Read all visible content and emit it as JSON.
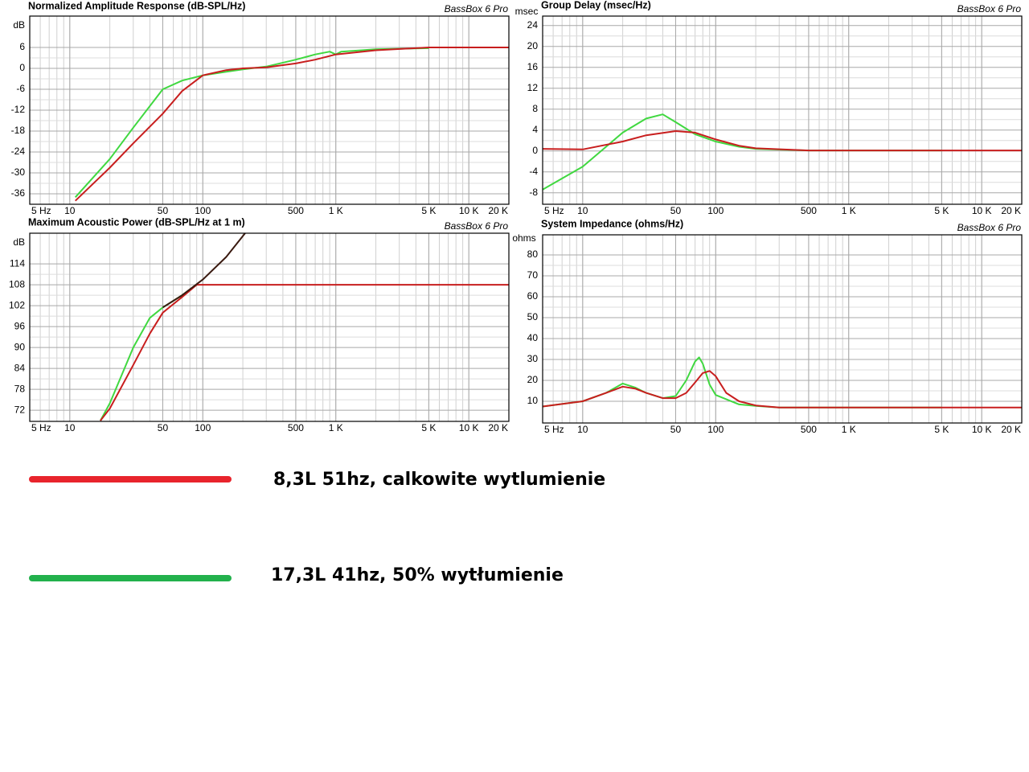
{
  "chart_data": [
    {
      "type": "line",
      "title": "Normalized Amplitude Response (dB-SPL/Hz)",
      "credit": "BassBox 6 Pro",
      "y_unit": "dB",
      "log_x": true,
      "grid": true,
      "minor_grid": true,
      "xlim": [
        5,
        20000
      ],
      "ylim": [
        -39,
        15
      ],
      "xticks": [
        {
          "value": 5,
          "label": "5 Hz"
        },
        10,
        50,
        100,
        500,
        {
          "value": 1000,
          "label": "1 K"
        },
        {
          "value": 5000,
          "label": "5 K"
        },
        {
          "value": 10000,
          "label": "10 K"
        },
        {
          "value": 20000,
          "label": "20 K"
        }
      ],
      "yticks": [
        -36,
        -30,
        -24,
        -18,
        -12,
        -6,
        0,
        6
      ],
      "series": [
        {
          "color": "#40d840",
          "x": [
            11,
            20,
            30,
            50,
            70,
            100,
            150,
            200,
            300,
            500,
            700,
            900,
            1000,
            1100,
            2000,
            5000
          ],
          "values": [
            -37,
            -26,
            -17,
            -6,
            -3.5,
            -2,
            -1,
            -0.3,
            0.5,
            2.5,
            4,
            4.8,
            4,
            4.8,
            5.5,
            5.8
          ]
        },
        {
          "color": "#c81e1e",
          "x": [
            11,
            20,
            30,
            50,
            70,
            100,
            150,
            200,
            300,
            500,
            700,
            1000,
            2000,
            5000,
            20000
          ],
          "values": [
            -38,
            -28.5,
            -21.5,
            -13,
            -6.5,
            -2,
            -0.5,
            0,
            0.3,
            1.4,
            2.5,
            4,
            5.2,
            6,
            6
          ]
        }
      ]
    },
    {
      "type": "line",
      "title": "Group Delay (msec/Hz)",
      "credit": "BassBox 6 Pro",
      "y_unit": "msec",
      "log_x": true,
      "grid": true,
      "minor_grid": true,
      "xlim": [
        5,
        20000
      ],
      "ylim": [
        -10.2,
        25.8
      ],
      "xticks": [
        {
          "value": 5,
          "label": "5 Hz"
        },
        10,
        50,
        100,
        500,
        {
          "value": 1000,
          "label": "1 K"
        },
        {
          "value": 5000,
          "label": "5 K"
        },
        {
          "value": 10000,
          "label": "10 K"
        },
        {
          "value": 20000,
          "label": "20 K"
        }
      ],
      "yticks": [
        -8,
        -4,
        0,
        4,
        8,
        12,
        16,
        20,
        24
      ],
      "series": [
        {
          "color": "#40d840",
          "x": [
            5,
            10,
            15,
            20,
            30,
            40,
            50,
            70,
            100,
            150,
            200,
            500,
            1000,
            5000
          ],
          "values": [
            -7.4,
            -3,
            0.8,
            3.5,
            6.2,
            7,
            5.5,
            3.2,
            1.8,
            0.8,
            0.4,
            0.1,
            0.1,
            0.1
          ]
        },
        {
          "color": "#c81e1e",
          "x": [
            5,
            10,
            20,
            30,
            50,
            70,
            100,
            150,
            200,
            500,
            1000,
            20000
          ],
          "values": [
            0.4,
            0.3,
            1.8,
            3,
            3.8,
            3.5,
            2.2,
            1,
            0.5,
            0.1,
            0.1,
            0.1
          ]
        }
      ]
    },
    {
      "type": "line",
      "title": "Maximum Acoustic Power (dB-SPL/Hz at 1 m)",
      "credit": "BassBox 6 Pro",
      "y_unit": "dB",
      "log_x": true,
      "grid": true,
      "minor_grid": true,
      "xlim": [
        5,
        20000
      ],
      "ylim": [
        68.8,
        122.8
      ],
      "xticks": [
        {
          "value": 5,
          "label": "5 Hz"
        },
        10,
        50,
        100,
        500,
        {
          "value": 1000,
          "label": "1 K"
        },
        {
          "value": 5000,
          "label": "5 K"
        },
        {
          "value": 10000,
          "label": "10 K"
        },
        {
          "value": 20000,
          "label": "20 K"
        }
      ],
      "yticks": [
        72,
        78,
        84,
        90,
        96,
        102,
        108,
        114
      ],
      "series": [
        {
          "color": "#40d840",
          "x": [
            17,
            20,
            30,
            40,
            50,
            70,
            90
          ],
          "values": [
            69,
            74,
            90,
            98.5,
            101.5,
            105,
            108
          ]
        },
        {
          "color": "#c81e1e",
          "x": [
            17,
            20,
            30,
            40,
            50,
            70,
            90,
            100,
            20000
          ],
          "values": [
            69,
            72.5,
            85,
            94,
            100,
            104.5,
            108,
            108,
            108
          ]
        },
        {
          "color": "#3a1a10",
          "x": [
            50,
            70,
            100,
            150,
            208
          ],
          "values": [
            101.5,
            105,
            109.5,
            116,
            122.8
          ]
        }
      ]
    },
    {
      "type": "line",
      "title": "System Impedance (ohms/Hz)",
      "credit": "BassBox 6 Pro",
      "y_unit": "ohms",
      "log_x": true,
      "grid": true,
      "minor_grid": true,
      "xlim": [
        5,
        20000
      ],
      "ylim": [
        -0.4,
        89.6
      ],
      "xticks": [
        {
          "value": 5,
          "label": "5 Hz"
        },
        10,
        50,
        100,
        500,
        {
          "value": 1000,
          "label": "1 K"
        },
        {
          "value": 5000,
          "label": "5 K"
        },
        {
          "value": 10000,
          "label": "10 K"
        },
        {
          "value": 20000,
          "label": "20 K"
        }
      ],
      "yticks": [
        10,
        20,
        30,
        40,
        50,
        60,
        70,
        80
      ],
      "series": [
        {
          "color": "#40d840",
          "x": [
            5,
            10,
            15,
            20,
            25,
            30,
            40,
            50,
            60,
            70,
            75,
            80,
            90,
            100,
            150,
            200,
            300,
            5000
          ],
          "values": [
            7.5,
            10,
            14,
            18.5,
            16.5,
            14,
            11.5,
            12.5,
            20,
            29,
            31,
            28,
            18,
            13,
            8.5,
            7.8,
            7,
            7
          ]
        },
        {
          "color": "#c81e1e",
          "x": [
            5,
            10,
            15,
            20,
            25,
            30,
            40,
            50,
            60,
            70,
            80,
            90,
            100,
            120,
            150,
            200,
            300,
            20000
          ],
          "values": [
            7.5,
            10,
            14,
            17,
            16,
            14,
            11.5,
            11.5,
            14,
            19,
            23.5,
            24.5,
            22,
            14,
            10,
            8,
            7,
            7
          ]
        }
      ]
    }
  ],
  "legend": [
    {
      "label": "8,3L 51hz, calkowite wytlumienie",
      "color": "#e8242c"
    },
    {
      "label": "17,3L 41hz, 50% wytłumienie",
      "color": "#22b14c"
    }
  ]
}
